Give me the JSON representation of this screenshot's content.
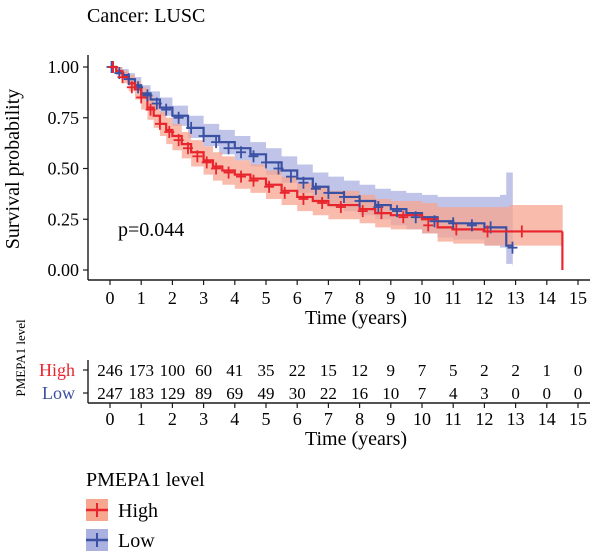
{
  "chart_data": {
    "type": "line",
    "title": "Cancer: LUSC",
    "xlabel": "Time (years)",
    "ylabel": "Survival probability",
    "xlim": [
      -0.4,
      15.4
    ],
    "ylim": [
      0,
      1
    ],
    "x_ticks": [
      "0",
      "1",
      "2",
      "3",
      "4",
      "5",
      "6",
      "7",
      "8",
      "9",
      "10",
      "11",
      "12",
      "13",
      "14",
      "15"
    ],
    "y_ticks": [
      "0.00",
      "0.25",
      "0.50",
      "0.75",
      "1.00"
    ],
    "annotation": "p=0.044",
    "series": [
      {
        "name": "High",
        "color": "#e8252d",
        "band_color": "#f7a690",
        "x": [
          0,
          0.2,
          0.4,
          0.6,
          0.8,
          1.0,
          1.2,
          1.4,
          1.6,
          1.8,
          2.0,
          2.3,
          2.6,
          3.0,
          3.3,
          3.6,
          4.0,
          4.5,
          5.0,
          5.5,
          6.0,
          6.5,
          7.0,
          8.0,
          8.5,
          9.0,
          10.0,
          10.5,
          11.0,
          12.0,
          12.8,
          13.0,
          14.5
        ],
        "y": [
          1.0,
          0.98,
          0.95,
          0.92,
          0.89,
          0.85,
          0.8,
          0.76,
          0.72,
          0.69,
          0.66,
          0.62,
          0.58,
          0.54,
          0.51,
          0.49,
          0.47,
          0.45,
          0.42,
          0.39,
          0.36,
          0.34,
          0.32,
          0.3,
          0.28,
          0.27,
          0.25,
          0.21,
          0.2,
          0.19,
          0.19,
          0.19,
          0.19
        ],
        "lower": [
          1.0,
          0.96,
          0.92,
          0.88,
          0.84,
          0.79,
          0.74,
          0.7,
          0.66,
          0.62,
          0.59,
          0.55,
          0.51,
          0.47,
          0.44,
          0.42,
          0.4,
          0.38,
          0.35,
          0.32,
          0.29,
          0.27,
          0.25,
          0.23,
          0.21,
          0.2,
          0.18,
          0.14,
          0.13,
          0.12,
          0.12,
          0.12,
          0.12
        ],
        "upper": [
          1.0,
          1.0,
          0.98,
          0.96,
          0.93,
          0.9,
          0.86,
          0.82,
          0.78,
          0.75,
          0.72,
          0.68,
          0.64,
          0.61,
          0.58,
          0.56,
          0.54,
          0.52,
          0.49,
          0.46,
          0.43,
          0.41,
          0.39,
          0.37,
          0.35,
          0.34,
          0.33,
          0.31,
          0.31,
          0.31,
          0.32,
          0.32,
          0.32
        ],
        "censor_x": [
          0.1,
          0.4,
          0.7,
          1.0,
          1.3,
          1.6,
          1.9,
          2.2,
          2.5,
          2.8,
          3.1,
          3.4,
          3.8,
          4.2,
          4.6,
          5.1,
          5.6,
          6.2,
          6.8,
          7.4,
          8.1,
          8.7,
          9.4,
          10.2,
          11.1,
          12.1,
          13.2
        ],
        "censor_y": [
          1.0,
          0.95,
          0.9,
          0.85,
          0.79,
          0.72,
          0.68,
          0.64,
          0.6,
          0.56,
          0.53,
          0.5,
          0.48,
          0.46,
          0.44,
          0.41,
          0.38,
          0.35,
          0.33,
          0.31,
          0.29,
          0.28,
          0.26,
          0.22,
          0.2,
          0.19,
          0.19
        ],
        "risk": [
          "246",
          "173",
          "100",
          "60",
          "41",
          "35",
          "22",
          "15",
          "12",
          "9",
          "7",
          "5",
          "2",
          "2",
          "1",
          "0"
        ]
      },
      {
        "name": "Low",
        "color": "#3a50a2",
        "band_color": "#aab0e0",
        "x": [
          0,
          0.2,
          0.4,
          0.6,
          0.8,
          1.0,
          1.3,
          1.6,
          2.0,
          2.5,
          3.0,
          3.5,
          4.0,
          4.5,
          5.0,
          5.5,
          6.0,
          6.5,
          7.0,
          7.5,
          8.0,
          8.5,
          9.0,
          9.5,
          10.0,
          10.5,
          11.0,
          12.0,
          12.5,
          12.7,
          12.9
        ],
        "y": [
          1.0,
          0.98,
          0.96,
          0.94,
          0.91,
          0.87,
          0.84,
          0.8,
          0.76,
          0.7,
          0.66,
          0.63,
          0.6,
          0.57,
          0.53,
          0.49,
          0.45,
          0.41,
          0.38,
          0.36,
          0.34,
          0.32,
          0.3,
          0.28,
          0.26,
          0.24,
          0.23,
          0.21,
          0.21,
          0.12,
          0.11
        ],
        "lower": [
          1.0,
          0.96,
          0.94,
          0.91,
          0.88,
          0.84,
          0.8,
          0.76,
          0.71,
          0.65,
          0.61,
          0.57,
          0.54,
          0.51,
          0.47,
          0.43,
          0.38,
          0.34,
          0.31,
          0.29,
          0.27,
          0.25,
          0.22,
          0.2,
          0.18,
          0.16,
          0.15,
          0.12,
          0.11,
          0.03,
          0.02
        ],
        "upper": [
          1.0,
          1.0,
          0.99,
          0.97,
          0.95,
          0.91,
          0.88,
          0.85,
          0.81,
          0.76,
          0.72,
          0.69,
          0.66,
          0.63,
          0.6,
          0.56,
          0.52,
          0.48,
          0.46,
          0.44,
          0.42,
          0.4,
          0.39,
          0.38,
          0.37,
          0.36,
          0.36,
          0.36,
          0.37,
          0.48,
          0.48
        ],
        "censor_x": [
          0.05,
          0.3,
          0.6,
          0.9,
          1.2,
          1.5,
          1.8,
          2.2,
          2.6,
          3.0,
          3.4,
          3.8,
          4.2,
          4.6,
          5.0,
          5.4,
          5.8,
          6.2,
          6.6,
          7.0,
          7.5,
          8.0,
          8.6,
          9.2,
          9.8,
          10.4,
          11.0,
          11.6,
          12.2,
          12.9
        ],
        "censor_y": [
          1.0,
          0.97,
          0.94,
          0.9,
          0.86,
          0.82,
          0.79,
          0.75,
          0.7,
          0.66,
          0.63,
          0.6,
          0.58,
          0.56,
          0.53,
          0.5,
          0.46,
          0.43,
          0.4,
          0.38,
          0.36,
          0.34,
          0.31,
          0.29,
          0.26,
          0.24,
          0.23,
          0.22,
          0.21,
          0.11
        ],
        "risk": [
          "247",
          "183",
          "129",
          "89",
          "69",
          "49",
          "30",
          "22",
          "16",
          "10",
          "7",
          "4",
          "3",
          "0",
          "0",
          "0"
        ]
      }
    ]
  },
  "risk_table": {
    "ylabel": "PMEPA1 level",
    "xlabel": "Time (years)",
    "rows": [
      "High",
      "Low"
    ]
  },
  "legend": {
    "title": "PMEPA1 level",
    "items": [
      "High",
      "Low"
    ]
  }
}
